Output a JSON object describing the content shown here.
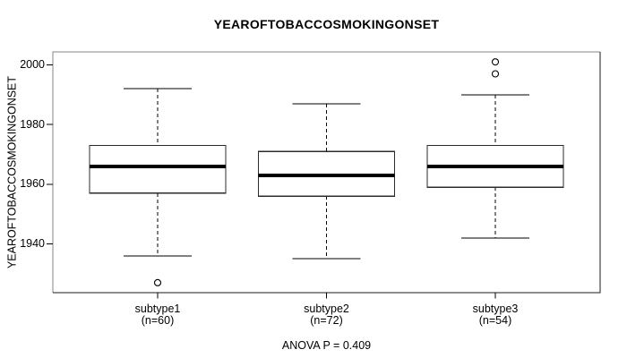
{
  "chart_data": {
    "type": "boxplot",
    "title": "YEAROFTOBACCOSMOKINGONSET",
    "ylabel": "YEAROFTOBACCOSMOKINGONSET",
    "annotation": "ANOVA P = 0.409",
    "grid": false,
    "legend": "none",
    "box_fill": "#ffffff",
    "line_color": "#000000",
    "y_axis": {
      "tick_labels": [
        "2000",
        "1980",
        "1960",
        "1940"
      ],
      "range": [
        1924,
        2004
      ]
    },
    "categories": [
      {
        "label": "subtype1",
        "count_label": "(n=60)"
      },
      {
        "label": "subtype2",
        "count_label": "(n=72)"
      },
      {
        "label": "subtype3",
        "count_label": "(n=54)"
      }
    ],
    "series": [
      {
        "name": "subtype1",
        "n": 60,
        "whisker_low": 1936,
        "q1": 1957,
        "median": 1966,
        "q3": 1973,
        "whisker_high": 1992,
        "outliers": [
          1927
        ]
      },
      {
        "name": "subtype2",
        "n": 72,
        "whisker_low": 1935,
        "q1": 1956,
        "median": 1963,
        "q3": 1971,
        "whisker_high": 1987,
        "outliers": []
      },
      {
        "name": "subtype3",
        "n": 54,
        "whisker_low": 1942,
        "q1": 1959,
        "median": 1966,
        "q3": 1973,
        "whisker_high": 1990,
        "outliers": [
          1997,
          2001
        ]
      }
    ]
  }
}
